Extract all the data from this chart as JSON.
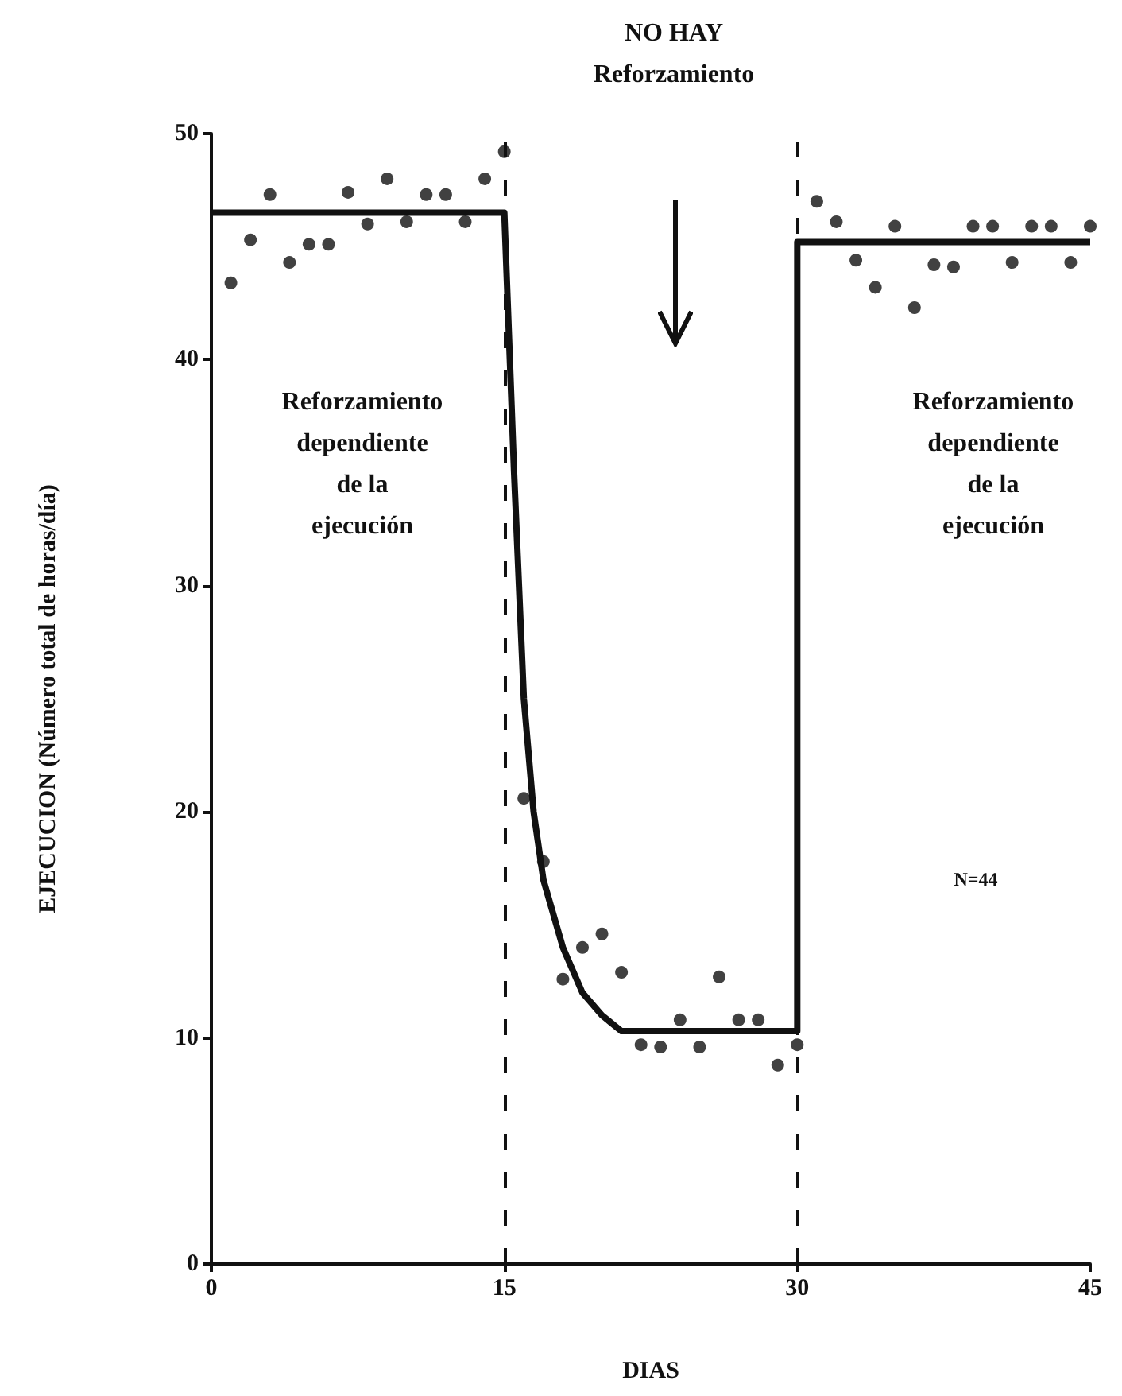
{
  "chart_data": {
    "type": "scatter",
    "xlabel": "DIAS",
    "ylabel": "EJECUCION (Número total de horas/día)",
    "x": [
      1,
      2,
      3,
      4,
      5,
      6,
      7,
      8,
      9,
      10,
      11,
      12,
      13,
      14,
      15,
      16,
      17,
      18,
      19,
      20,
      21,
      22,
      23,
      24,
      25,
      26,
      27,
      28,
      29,
      30,
      31,
      32,
      33,
      34,
      35,
      36,
      37,
      38,
      39,
      40,
      41,
      42,
      43,
      44,
      45
    ],
    "series": [
      {
        "marker": "circle",
        "color": "#111111",
        "values": [
          43.4,
          45.3,
          47.3,
          44.3,
          45.1,
          45.1,
          47.4,
          46.0,
          48.0,
          46.1,
          47.3,
          47.3,
          46.1,
          48.0,
          49.2,
          20.6,
          17.8,
          12.6,
          14.0,
          14.6,
          12.9,
          9.7,
          9.6,
          10.8,
          9.6,
          12.7,
          10.8,
          10.8,
          8.8,
          9.7,
          47.0,
          46.1,
          44.4,
          43.2,
          45.9,
          42.3,
          44.2,
          44.1,
          45.9,
          45.9,
          44.3,
          45.9,
          45.9,
          44.3,
          45.9
        ]
      },
      {
        "type": "line",
        "marker": "none",
        "color": "#111111",
        "x": [
          0,
          15,
          15.5,
          16,
          16.5,
          17,
          18,
          19,
          20,
          21,
          30,
          30,
          45
        ],
        "values": [
          46.5,
          46.5,
          35,
          25,
          20,
          17,
          14,
          12,
          11,
          10.3,
          10.3,
          45.2,
          45.2
        ]
      }
    ],
    "xlim": [
      0,
      45
    ],
    "xticks": [
      0,
      15,
      30,
      45
    ],
    "ylim": [
      0,
      50
    ],
    "yticks": [
      0,
      10,
      20,
      30,
      40,
      50
    ],
    "grid": false,
    "ref_lines": [
      {
        "axis": "x",
        "value": 15,
        "color": "#111111",
        "line_style": "dashed"
      },
      {
        "axis": "x",
        "value": 30,
        "color": "#111111",
        "line_style": "dashed"
      }
    ],
    "annotations": [
      "NO HAY\nReforzamiento",
      "Reforzamiento\ndependiente\nde la\nejecución",
      "Reforzamiento\ndependiente\nde la\nejecución",
      "N=44"
    ]
  }
}
